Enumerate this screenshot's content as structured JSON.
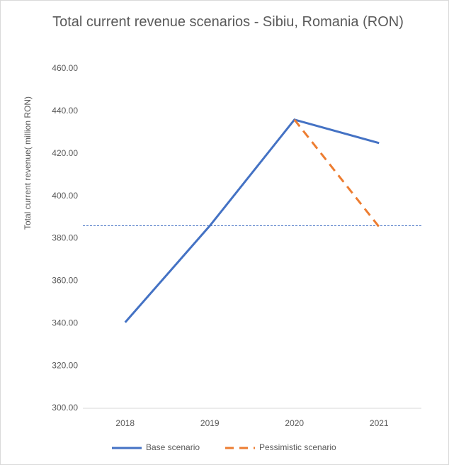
{
  "chart_data": {
    "type": "line",
    "title": "Total current revenue scenarios - Sibiu, Romania (RON)",
    "y_label": "Total current revenue( million RON)",
    "categories": [
      "2018",
      "2019",
      "2020",
      "2021"
    ],
    "series": [
      {
        "name": "Base scenario",
        "color": "#4472c4",
        "dashed": false,
        "values": [
          340.5,
          386,
          436,
          425
        ]
      },
      {
        "name": "Pessimistic  scenario",
        "color": "#ed7d31",
        "dashed": true,
        "values": [
          null,
          null,
          436,
          385.5
        ]
      }
    ],
    "reference_line": {
      "value": 386,
      "color": "#4472c4"
    },
    "ylim": [
      300,
      460
    ],
    "yticks": [
      {
        "value": 300,
        "label": "300.00"
      },
      {
        "value": 320,
        "label": "320.00"
      },
      {
        "value": 340,
        "label": "340.00"
      },
      {
        "value": 360,
        "label": "360.00"
      },
      {
        "value": 380,
        "label": "380.00"
      },
      {
        "value": 400,
        "label": "400.00"
      },
      {
        "value": 420,
        "label": "420.00"
      },
      {
        "value": 440,
        "label": "440.00"
      },
      {
        "value": 460,
        "label": "460.00"
      }
    ],
    "grid": false,
    "legend": "bottom"
  }
}
